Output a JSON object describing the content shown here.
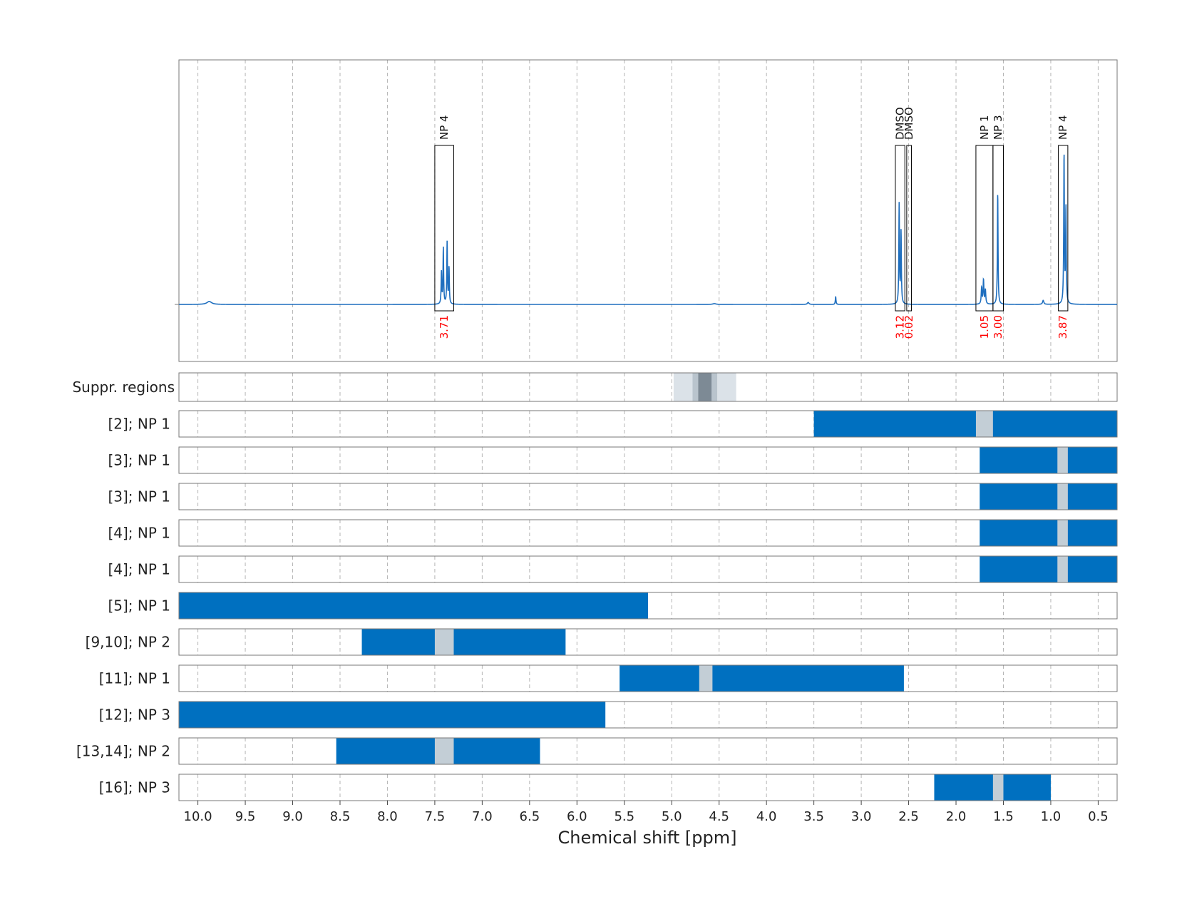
{
  "chart_data": {
    "type": "line",
    "xlabel": "Chemical shift [ppm]",
    "xlim": [
      10.2,
      0.3
    ],
    "x_reversed": true,
    "x_ticks": [
      "10.0",
      "9.5",
      "9.0",
      "8.5",
      "8.0",
      "7.5",
      "7.0",
      "6.5",
      "6.0",
      "5.5",
      "5.0",
      "4.5",
      "4.0",
      "3.5",
      "3.0",
      "2.5",
      "2.0",
      "1.5",
      "1.0",
      "0.5"
    ],
    "grid": "vertical dashed",
    "colors": {
      "spectrum": "#1f6fbf",
      "region": "#0070c0",
      "suppressed": "#c3ced6",
      "integral_label": "#ff0000",
      "suppr_light": "#dbe2e8",
      "suppr_mid": "#b9c4cd",
      "suppr_dark": "#7d8a95"
    },
    "spectrum": {
      "baseline": 0.0,
      "peaks": [
        {
          "ppm": 9.88,
          "height": 0.015,
          "width": 0.03
        },
        {
          "ppm": 7.43,
          "height": 0.16,
          "width": 0.004
        },
        {
          "ppm": 7.41,
          "height": 0.28,
          "width": 0.004
        },
        {
          "ppm": 7.37,
          "height": 0.31,
          "width": 0.004
        },
        {
          "ppm": 7.35,
          "height": 0.18,
          "width": 0.004
        },
        {
          "ppm": 4.55,
          "height": 0.004,
          "width": 0.02
        },
        {
          "ppm": 3.56,
          "height": 0.01,
          "width": 0.01
        },
        {
          "ppm": 3.27,
          "height": 0.04,
          "width": 0.004
        },
        {
          "ppm": 2.6,
          "height": 0.5,
          "width": 0.004
        },
        {
          "ppm": 2.58,
          "height": 0.36,
          "width": 0.004
        },
        {
          "ppm": 1.73,
          "height": 0.08,
          "width": 0.005
        },
        {
          "ppm": 1.71,
          "height": 0.12,
          "width": 0.005
        },
        {
          "ppm": 1.69,
          "height": 0.07,
          "width": 0.005
        },
        {
          "ppm": 1.56,
          "height": 0.56,
          "width": 0.004
        },
        {
          "ppm": 1.08,
          "height": 0.02,
          "width": 0.008
        },
        {
          "ppm": 0.86,
          "height": 0.75,
          "width": 0.004
        },
        {
          "ppm": 0.84,
          "height": 0.48,
          "width": 0.004
        }
      ],
      "annotations": [
        {
          "label": "NP 4",
          "integral": "3.71",
          "x0": 7.5,
          "x1": 7.3
        },
        {
          "label": "DMSO",
          "integral": "3.12",
          "x0": 2.64,
          "x1": 2.54
        },
        {
          "label": "DMSO",
          "integral": "0.02",
          "x0": 2.52,
          "x1": 2.47
        },
        {
          "label": "NP 1",
          "integral": "1.05",
          "x0": 1.79,
          "x1": 1.61
        },
        {
          "label": "NP 3",
          "integral": "3.00",
          "x0": 1.61,
          "x1": 1.5
        },
        {
          "label": "NP 4",
          "integral": "3.87",
          "x0": 0.92,
          "x1": 0.82
        }
      ]
    },
    "suppression": {
      "label": "Suppr. regions",
      "bands": [
        {
          "x0": 4.98,
          "x1": 4.32,
          "shade": "light"
        },
        {
          "x0": 4.78,
          "x1": 4.52,
          "shade": "mid"
        },
        {
          "x0": 4.72,
          "x1": 4.58,
          "shade": "dark"
        }
      ]
    },
    "rows": [
      {
        "label": "[2]; NP 1",
        "segments": [
          [
            3.5,
            0.3
          ]
        ],
        "gaps": [
          [
            1.79,
            1.61
          ]
        ]
      },
      {
        "label": "[3]; NP 1",
        "segments": [
          [
            1.75,
            0.3
          ]
        ],
        "gaps": [
          [
            0.93,
            0.82
          ]
        ]
      },
      {
        "label": "[3]; NP 1",
        "segments": [
          [
            1.75,
            0.3
          ]
        ],
        "gaps": [
          [
            0.93,
            0.82
          ]
        ]
      },
      {
        "label": "[4]; NP 1",
        "segments": [
          [
            1.75,
            0.3
          ]
        ],
        "gaps": [
          [
            0.93,
            0.82
          ]
        ]
      },
      {
        "label": "[4]; NP 1",
        "segments": [
          [
            1.75,
            0.3
          ]
        ],
        "gaps": [
          [
            0.93,
            0.82
          ]
        ]
      },
      {
        "label": "[5]; NP 1",
        "segments": [
          [
            10.2,
            5.25
          ]
        ],
        "gaps": []
      },
      {
        "label": "[9,10]; NP 2",
        "segments": [
          [
            8.27,
            6.12
          ]
        ],
        "gaps": [
          [
            7.5,
            7.3
          ]
        ]
      },
      {
        "label": "[11]; NP 1",
        "segments": [
          [
            5.55,
            2.55
          ]
        ],
        "gaps": [
          [
            4.71,
            4.57
          ]
        ]
      },
      {
        "label": "[12]; NP 3",
        "segments": [
          [
            10.2,
            5.7
          ]
        ],
        "gaps": []
      },
      {
        "label": "[13,14]; NP 2",
        "segments": [
          [
            8.54,
            6.39
          ]
        ],
        "gaps": [
          [
            7.5,
            7.3
          ]
        ]
      },
      {
        "label": "[16]; NP 3",
        "segments": [
          [
            2.23,
            1.0
          ]
        ],
        "gaps": [
          [
            1.61,
            1.5
          ]
        ]
      }
    ]
  }
}
